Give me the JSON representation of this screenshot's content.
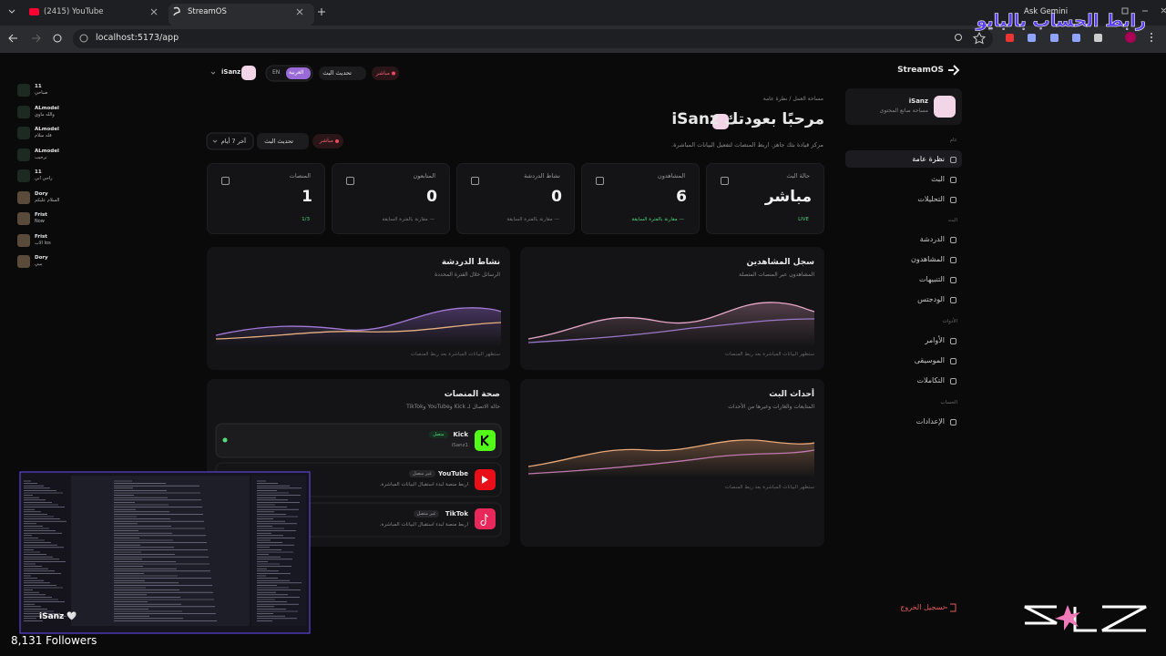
{
  "browser": {
    "tabs": [
      "(2415) YouTube",
      "StreamOS"
    ],
    "url": "localhost:5173/app",
    "gemini": "Ask Gemini"
  },
  "overlay": {
    "banner": "رابط الحساب بالبايو",
    "chat": [
      {
        "name": "11",
        "message": "صباحي"
      },
      {
        "name": "ALmodel",
        "message": "والله ماوي"
      },
      {
        "name": "ALmodel",
        "message": "قله سلام"
      },
      {
        "name": "ALmodel",
        "message": "ترحيب"
      },
      {
        "name": "11",
        "message": "راحي اني"
      },
      {
        "name": "Dory",
        "message": "السلام عليكم"
      },
      {
        "name": "Frist",
        "message": "Now"
      },
      {
        "name": "Frist",
        "message": "الاب Ios"
      },
      {
        "name": "Dory",
        "message": "يبيي"
      }
    ],
    "streamer": "iSanz 🤍",
    "followers": "8,131 Followers"
  },
  "sidebar": {
    "brand": "StreamOS",
    "user": {
      "name": "iSanz",
      "role": "مساحة صانع المحتوى"
    },
    "sections": [
      {
        "title": "عام",
        "items": [
          "نظرة عامة",
          "البث",
          "التحليلات"
        ]
      },
      {
        "title": "البث",
        "items": [
          "الدردشة",
          "المشاهدون",
          "التنبيهات",
          "الودجتس"
        ]
      },
      {
        "title": "الأدوات",
        "items": [
          "الأوامر",
          "الموسيقى",
          "التكاملات"
        ]
      },
      {
        "title": "الحساب",
        "items": [
          "الإعدادات"
        ]
      }
    ],
    "logout": "تسجيل الخروج"
  },
  "topbar": {
    "live": "مباشر",
    "refresh": "تحديث البث",
    "lang_en": "EN",
    "lang_ar": "العربية",
    "user": "iSanz"
  },
  "header": {
    "breadcrumb": "مساحة العمل / نظرة عامة",
    "title": "مرحبًا بعودتك iSanz",
    "subtitle": "مركز قيادة بثك جاهز. اربط المنصات لتفعيل البيانات المباشرة.",
    "live": "مباشر",
    "refresh": "تحديث البث",
    "range": "آخر 7 أيام"
  },
  "stats": [
    {
      "label": "حالة البث",
      "value": "مباشر",
      "note": "LIVE"
    },
    {
      "label": "المشاهدون",
      "value": "6",
      "note": "— مقارنة بالفترة السابقة"
    },
    {
      "label": "نشاط الدردشة",
      "value": "0",
      "note": "— مقارنة بالفترة السابقة"
    },
    {
      "label": "المتابعون",
      "value": "0",
      "note": "— مقارنة بالفترة السابقة"
    },
    {
      "label": "المنصات",
      "value": "1",
      "note": "1/3"
    }
  ],
  "panels": [
    {
      "title": "سجل المشاهدين",
      "subtitle": "المشاهدون عبر المنصات المتصلة",
      "note": "ستظهر البيانات المباشرة بعد ربط المنصات"
    },
    {
      "title": "نشاط الدردشة",
      "subtitle": "الرسائل خلال الفترة المحددة",
      "note": "ستظهر البيانات المباشرة بعد ربط المنصات"
    },
    {
      "title": "أحداث البث",
      "subtitle": "المتابعات والغارات وغيرها من الأحداث",
      "note": "ستظهر البيانات المباشرة بعد ربط المنصات"
    }
  ],
  "platform_health": {
    "title": "صحة المنصات",
    "subtitle": "حالة الاتصال لـ Kick وYouTube وTikTok",
    "platforms": [
      {
        "name": "Kick",
        "status": "متصل",
        "detail": "iSanz1"
      },
      {
        "name": "YouTube",
        "status": "غير متصل",
        "detail": "اربط منصة لبدء استقبال البيانات المباشرة."
      },
      {
        "name": "TikTok",
        "status": "غير متصل",
        "detail": "اربط منصة لبدء استقبال البيانات المباشرة."
      }
    ]
  }
}
